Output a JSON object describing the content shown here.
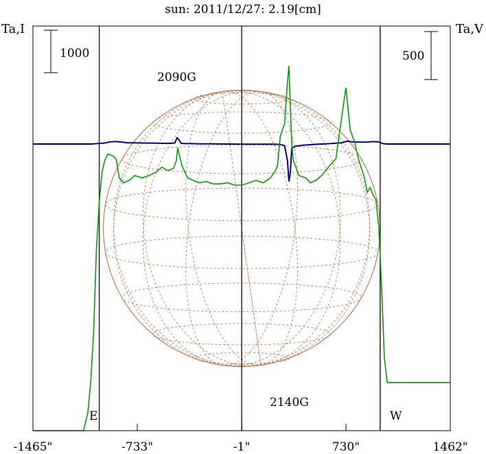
{
  "chart_data": {
    "type": "line",
    "title": "sun: 2011/12/27: 2.19[cm]",
    "title_color": "#1a1a8c",
    "left_axis_label": "Ta,I",
    "right_axis_label": "Ta,V",
    "x_ticks": [
      "-1465\"",
      "-733\"",
      "-1\"",
      "730\"",
      "1462\""
    ],
    "x_tick_values": [
      -1465,
      -733,
      -1,
      730,
      1462
    ],
    "xlim": [
      -1465,
      1462
    ],
    "limb_lines": [
      -1000,
      -1,
      970
    ],
    "scale_bar_left": {
      "label": "1000",
      "value": 1000
    },
    "scale_bar_right": {
      "label": "500",
      "value": 500
    },
    "annotations": [
      {
        "text": "2090G",
        "x": -450
      },
      {
        "text": "2140G",
        "x": 330
      },
      {
        "text": "E",
        "x": -1000
      },
      {
        "text": "W",
        "x": 970
      }
    ],
    "disk": {
      "center_x": -1,
      "radius_arcsec": 970,
      "color": "#b5653a"
    },
    "series": [
      {
        "color": "#00008b",
        "x": [
          -1465,
          -1060,
          -1040,
          -1000,
          -960,
          -920,
          -880,
          -840,
          -800,
          -760,
          -700,
          -600,
          -520,
          -470,
          -455,
          -445,
          -425,
          -400,
          -360,
          -300,
          -200,
          -100,
          0,
          100,
          200,
          230,
          270,
          300,
          320,
          330,
          340,
          350,
          380,
          430,
          500,
          560,
          620,
          660,
          700,
          740,
          780,
          830,
          880,
          920,
          960,
          990,
          1020,
          1080,
          1200,
          1462
        ],
        "values": [
          0,
          0,
          3,
          15,
          25,
          55,
          60,
          45,
          30,
          28,
          25,
          20,
          15,
          25,
          150,
          120,
          15,
          10,
          10,
          5,
          3,
          0,
          -5,
          -5,
          -5,
          -5,
          -10,
          -40,
          -400,
          -900,
          -700,
          -100,
          -50,
          -30,
          -10,
          0,
          10,
          20,
          30,
          70,
          50,
          45,
          45,
          60,
          50,
          10,
          0,
          0,
          0,
          0
        ]
      },
      {
        "color": "#00a000",
        "x": [
          -1465,
          -1110,
          -1080,
          -1060,
          -1040,
          -1020,
          -1000,
          -980,
          -960,
          -940,
          -900,
          -880,
          -860,
          -830,
          -790,
          -750,
          -700,
          -650,
          -600,
          -560,
          -520,
          -480,
          -460,
          -450,
          -440,
          -420,
          -380,
          -340,
          -300,
          -250,
          -200,
          -150,
          -100,
          -50,
          0,
          50,
          100,
          150,
          200,
          230,
          250,
          270,
          300,
          320,
          330,
          340,
          350,
          360,
          400,
          450,
          480,
          520,
          560,
          600,
          660,
          700,
          730,
          760,
          790,
          820,
          860,
          880,
          900,
          920,
          940,
          960,
          980,
          1000,
          1020,
          1100,
          1200,
          1462
        ],
        "values": [
          0,
          0,
          150,
          400,
          800,
          1500,
          1900,
          2150,
          2250,
          2300,
          2280,
          2250,
          2100,
          2060,
          2080,
          2120,
          2100,
          2120,
          2150,
          2190,
          2160,
          2180,
          2240,
          2350,
          2300,
          2200,
          2100,
          2080,
          2060,
          2070,
          2050,
          2050,
          2060,
          2040,
          2040,
          2060,
          2080,
          2060,
          2100,
          2150,
          2200,
          2450,
          2550,
          2900,
          3030,
          2700,
          2400,
          2250,
          2120,
          2100,
          2060,
          2080,
          2120,
          2180,
          2260,
          2600,
          2850,
          2500,
          2400,
          2250,
          2100,
          1980,
          2020,
          1960,
          1920,
          1700,
          1200,
          600,
          400,
          400,
          400,
          400
        ]
      }
    ]
  }
}
